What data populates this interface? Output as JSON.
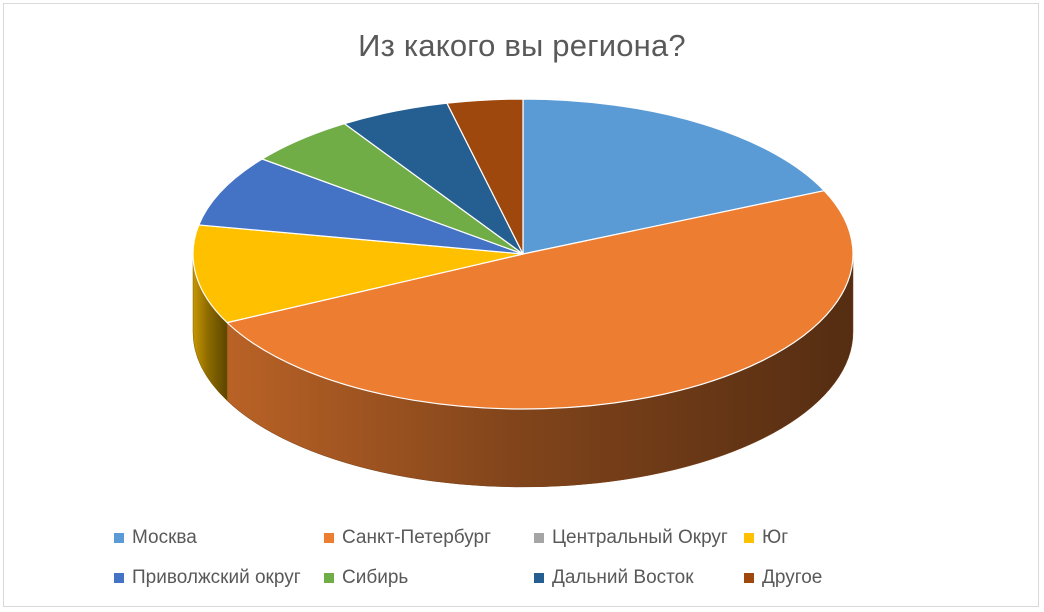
{
  "chart_data": {
    "type": "pie",
    "title": "Из какого вы региона?",
    "style": "3d",
    "legend_position": "bottom",
    "slices": [
      {
        "label": "Москва",
        "value": 18.3,
        "color": "#5b9bd5"
      },
      {
        "label": "Санкт-Петербург",
        "value": 49.4,
        "color": "#ed7d31"
      },
      {
        "label": "Центральный Округ",
        "value": 0,
        "color": "#a5a5a5"
      },
      {
        "label": "Юг",
        "value": 10.3,
        "color": "#ffc000"
      },
      {
        "label": "Приволжский округ",
        "value": 7.5,
        "color": "#4472c4"
      },
      {
        "label": "Сибирь",
        "value": 5.4,
        "color": "#70ad47"
      },
      {
        "label": "Дальний Восток",
        "value": 5.4,
        "color": "#255e91"
      },
      {
        "label": "Другое",
        "value": 3.7,
        "color": "#9e480e"
      }
    ]
  }
}
